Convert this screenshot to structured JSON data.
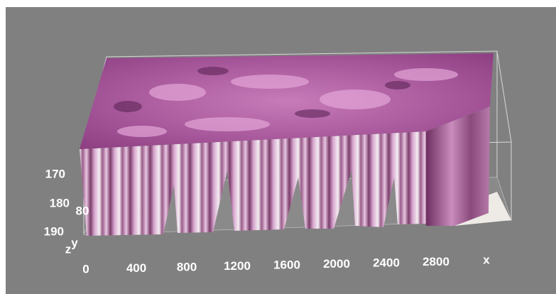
{
  "x_axis": {
    "ticks": [
      "0",
      "400",
      "800",
      "1200",
      "1600",
      "2000",
      "2400",
      "2800"
    ],
    "label": "x"
  },
  "y_axis": {
    "ticks": [
      "80"
    ],
    "label": "y"
  },
  "z_axis": {
    "ticks": [
      "170",
      "180",
      "190"
    ],
    "label": "z"
  }
}
